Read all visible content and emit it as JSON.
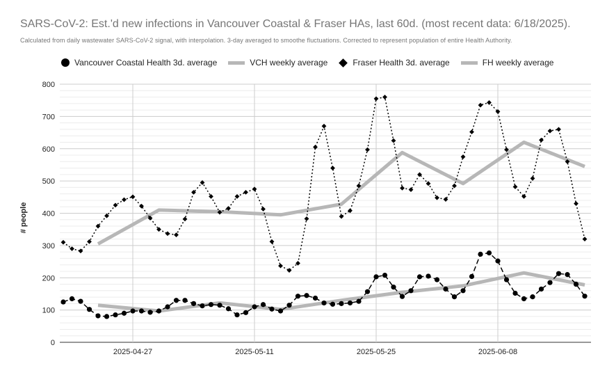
{
  "chart_data": {
    "type": "line",
    "title": "SARS-CoV-2: Est.'d new infections in Vancouver Coastal & Fraser HAs, last 60d. (most recent data: 6/18/2025).",
    "subtitle": "Calculated from daily wastewater SARS-CoV-2 signal, with interpolation. 3-day averaged to smoothe fluctuations. Corrected to represent population of entire Health Authority.",
    "xlabel": "",
    "ylabel": "# people",
    "ylim": [
      0,
      800
    ],
    "yticks": [
      "0",
      "100",
      "200",
      "300",
      "400",
      "500",
      "600",
      "700",
      "800"
    ],
    "x_start": "2025-04-19",
    "x_end": "2025-06-18",
    "xticks": [
      "2025-04-27",
      "2025-05-11",
      "2025-05-25",
      "2025-06-08"
    ],
    "grid": true,
    "legend_position": "top",
    "series": [
      {
        "name": "Vancouver Coastal Health 3d. average",
        "style": "dashed-dot-markers",
        "color": "#000000",
        "x": [
          "2025-04-19",
          "2025-04-20",
          "2025-04-21",
          "2025-04-22",
          "2025-04-23",
          "2025-04-24",
          "2025-04-25",
          "2025-04-26",
          "2025-04-27",
          "2025-04-28",
          "2025-04-29",
          "2025-04-30",
          "2025-05-01",
          "2025-05-02",
          "2025-05-03",
          "2025-05-04",
          "2025-05-05",
          "2025-05-06",
          "2025-05-07",
          "2025-05-08",
          "2025-05-09",
          "2025-05-10",
          "2025-05-11",
          "2025-05-12",
          "2025-05-13",
          "2025-05-14",
          "2025-05-15",
          "2025-05-16",
          "2025-05-17",
          "2025-05-18",
          "2025-05-19",
          "2025-05-20",
          "2025-05-21",
          "2025-05-22",
          "2025-05-23",
          "2025-05-24",
          "2025-05-25",
          "2025-05-26",
          "2025-05-27",
          "2025-05-28",
          "2025-05-29",
          "2025-05-30",
          "2025-05-31",
          "2025-06-01",
          "2025-06-02",
          "2025-06-03",
          "2025-06-04",
          "2025-06-05",
          "2025-06-06",
          "2025-06-07",
          "2025-06-08",
          "2025-06-09",
          "2025-06-10",
          "2025-06-11",
          "2025-06-12",
          "2025-06-13",
          "2025-06-14",
          "2025-06-15",
          "2025-06-16",
          "2025-06-17",
          "2025-06-18"
        ],
        "values": [
          125,
          135,
          127,
          102,
          82,
          80,
          85,
          90,
          97,
          97,
          93,
          97,
          110,
          130,
          130,
          120,
          113,
          117,
          115,
          104,
          85,
          92,
          110,
          117,
          103,
          97,
          115,
          143,
          145,
          137,
          122,
          118,
          120,
          122,
          127,
          157,
          203,
          208,
          171,
          142,
          160,
          203,
          205,
          194,
          165,
          141,
          160,
          204,
          273,
          277,
          252,
          194,
          152,
          135,
          141,
          165,
          185,
          213,
          210,
          180,
          143
        ]
      },
      {
        "name": "VCH weekly average",
        "style": "thick-line",
        "color": "#b7b7b7",
        "x": [
          "2025-04-23",
          "2025-04-30",
          "2025-05-07",
          "2025-05-14",
          "2025-05-21",
          "2025-05-28",
          "2025-06-04",
          "2025-06-11",
          "2025-06-18"
        ],
        "values": [
          115,
          97,
          122,
          102,
          130,
          155,
          175,
          215,
          178
        ]
      },
      {
        "name": "Fraser Health 3d. average",
        "style": "dotted-diamond-markers",
        "color": "#000000",
        "x": [
          "2025-04-19",
          "2025-04-20",
          "2025-04-21",
          "2025-04-22",
          "2025-04-23",
          "2025-04-24",
          "2025-04-25",
          "2025-04-26",
          "2025-04-27",
          "2025-04-28",
          "2025-04-29",
          "2025-04-30",
          "2025-05-01",
          "2025-05-02",
          "2025-05-03",
          "2025-05-04",
          "2025-05-05",
          "2025-05-06",
          "2025-05-07",
          "2025-05-08",
          "2025-05-09",
          "2025-05-10",
          "2025-05-11",
          "2025-05-12",
          "2025-05-13",
          "2025-05-14",
          "2025-05-15",
          "2025-05-16",
          "2025-05-17",
          "2025-05-18",
          "2025-05-19",
          "2025-05-20",
          "2025-05-21",
          "2025-05-22",
          "2025-05-23",
          "2025-05-24",
          "2025-05-25",
          "2025-05-26",
          "2025-05-27",
          "2025-05-28",
          "2025-05-29",
          "2025-05-30",
          "2025-05-31",
          "2025-06-01",
          "2025-06-02",
          "2025-06-03",
          "2025-06-04",
          "2025-06-05",
          "2025-06-06",
          "2025-06-07",
          "2025-06-08",
          "2025-06-09",
          "2025-06-10",
          "2025-06-11",
          "2025-06-12",
          "2025-06-13",
          "2025-06-14",
          "2025-06-15",
          "2025-06-16",
          "2025-06-17",
          "2025-06-18"
        ],
        "values": [
          310,
          290,
          283,
          312,
          360,
          392,
          425,
          442,
          451,
          422,
          385,
          350,
          337,
          333,
          382,
          465,
          495,
          452,
          403,
          415,
          452,
          465,
          475,
          413,
          312,
          237,
          223,
          245,
          383,
          605,
          670,
          540,
          390,
          408,
          485,
          597,
          755,
          760,
          625,
          478,
          473,
          520,
          492,
          448,
          443,
          485,
          575,
          652,
          735,
          743,
          715,
          597,
          482,
          452,
          508,
          627,
          655,
          660,
          560,
          430,
          320
        ]
      },
      {
        "name": "FH weekly average",
        "style": "thick-line",
        "color": "#b7b7b7",
        "x": [
          "2025-04-23",
          "2025-04-30",
          "2025-05-07",
          "2025-05-14",
          "2025-05-21",
          "2025-05-28",
          "2025-06-04",
          "2025-06-11",
          "2025-06-18"
        ],
        "values": [
          305,
          410,
          405,
          395,
          428,
          588,
          492,
          620,
          545
        ]
      }
    ]
  }
}
